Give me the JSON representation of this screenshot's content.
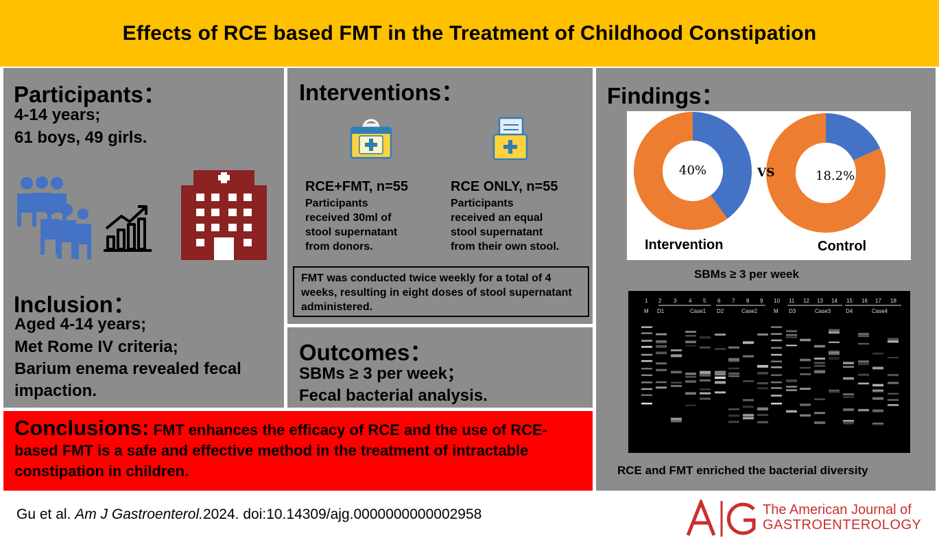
{
  "title": "Effects of RCE based FMT in the Treatment of Childhood Constipation",
  "participants": {
    "heading": "Participants：",
    "line1": "4-14 years;",
    "line2": "61 boys, 49 girls."
  },
  "inclusion": {
    "heading": "Inclusion：",
    "line1": "Aged 4-14 years;",
    "line2": "Met Rome IV criteria;",
    "line3": "Barium enema revealed fecal",
    "line4": "impaction."
  },
  "interventions": {
    "heading": "Interventions：",
    "arm1": {
      "title": "RCE+FMT, n=55",
      "desc1": "Participants",
      "desc2": "received 30ml of",
      "desc3": "stool supernatant",
      "desc4": "from donors."
    },
    "arm2": {
      "title": "RCE ONLY, n=55",
      "desc1": "Participants",
      "desc2": "received an equal",
      "desc3": "stool supernatant",
      "desc4": "from their own stool."
    },
    "note": "FMT was conducted twice weekly for a total of 4 weeks, resulting in eight doses of stool supernatant administered."
  },
  "outcomes": {
    "heading": "Outcomes：",
    "line1": "SBMs ≥ 3 per week；",
    "line2": "Fecal bacterial analysis."
  },
  "conclusion": {
    "label": "Conclusions:",
    "text": " FMT enhances the efficacy of RCE and the use of RCE-based FMT is a safe and effective method in the treatment of intractable constipation in children."
  },
  "findings": {
    "heading": "Findings：",
    "vs_label": "VS",
    "chart_caption": "SBMs ≥ 3 per week",
    "gel_caption": "RCE and FMT enriched the bacterial diversity"
  },
  "chart_data": {
    "type": "pie",
    "title": "",
    "charts": [
      {
        "name": "Intervention",
        "value_label": "40%",
        "slices": [
          {
            "value": 40,
            "color": "#4472c4"
          },
          {
            "value": 60,
            "color": "#ed7d31"
          }
        ]
      },
      {
        "name": "Control",
        "value_label": "18.2%",
        "slices": [
          {
            "value": 18.2,
            "color": "#4472c4"
          },
          {
            "value": 81.8,
            "color": "#ed7d31"
          }
        ]
      }
    ]
  },
  "gel": {
    "lane_numbers": [
      "1",
      "2",
      "3",
      "4",
      "5",
      "6",
      "7",
      "8",
      "9",
      "10",
      "11",
      "12",
      "13",
      "14",
      "15",
      "16",
      "17",
      "18"
    ],
    "group_labels": [
      "M",
      "D1",
      "Case1",
      "D2",
      "Case2",
      "M",
      "D3",
      "Case3",
      "D4",
      "Case4"
    ]
  },
  "footer": {
    "authors": "Gu et al. ",
    "journal_abbrev": "Am J Gastroenterol.",
    "year_doi": "2024. doi:10.14309/ajg.0000000000002958"
  },
  "journal_logo": {
    "line1": "The American Journal of",
    "line2": "GASTROENTEROLOGY"
  },
  "colors": {
    "title_bg": "#ffc000",
    "panel_bg": "#8c8c8c",
    "conclusion_bg": "#ff0000",
    "series_blue": "#4472c4",
    "series_orange": "#ed7d31",
    "hospital": "#8b2323",
    "people": "#4472c4",
    "logo_red": "#c9302c"
  }
}
